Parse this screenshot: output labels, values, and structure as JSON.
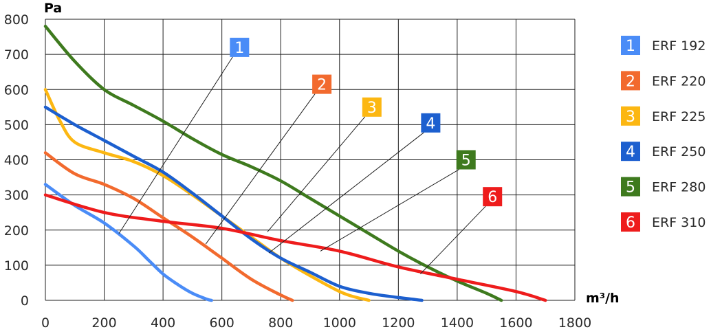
{
  "chart_data": {
    "type": "line",
    "title": "",
    "xlabel": "m³/h",
    "ylabel": "Pa",
    "xlim": [
      0,
      1800
    ],
    "ylim": [
      0,
      800
    ],
    "x_ticks": [
      "0",
      "200",
      "400",
      "600",
      "800",
      "1000",
      "1200",
      "1400",
      "1600",
      "1800"
    ],
    "y_ticks": [
      "0",
      "100",
      "200",
      "300",
      "400",
      "500",
      "600",
      "700",
      "800"
    ],
    "grid": true,
    "legend_position": "right",
    "series": [
      {
        "id": "1",
        "name": "ERF 192",
        "color": "#4a8cf7",
        "x": [
          0,
          100,
          200,
          300,
          350,
          400,
          450,
          500,
          550,
          565
        ],
        "y": [
          330,
          270,
          220,
          155,
          115,
          75,
          45,
          20,
          3,
          0
        ],
        "badge_anchor": [
          660,
          720
        ],
        "leader_end": [
          250,
          190
        ]
      },
      {
        "id": "2",
        "name": "ERF 220",
        "color": "#f26a2e",
        "x": [
          0,
          100,
          200,
          300,
          400,
          500,
          600,
          700,
          800,
          840
        ],
        "y": [
          420,
          360,
          330,
          290,
          235,
          180,
          120,
          60,
          15,
          0
        ],
        "badge_anchor": [
          940,
          615
        ],
        "leader_end": [
          545,
          160
        ]
      },
      {
        "id": "3",
        "name": "ERF 225",
        "color": "#fcb712",
        "x": [
          0,
          50,
          100,
          200,
          300,
          400,
          500,
          600,
          700,
          800,
          900,
          1000,
          1050,
          1100
        ],
        "y": [
          600,
          510,
          450,
          420,
          395,
          355,
          300,
          240,
          180,
          120,
          70,
          25,
          10,
          0
        ],
        "badge_anchor": [
          1110,
          550
        ],
        "leader_end": [
          755,
          195
        ]
      },
      {
        "id": "4",
        "name": "ERF 250",
        "color": "#1c5fcf",
        "x": [
          0,
          100,
          200,
          300,
          400,
          500,
          600,
          700,
          800,
          900,
          1000,
          1100,
          1200,
          1280
        ],
        "y": [
          550,
          500,
          455,
          410,
          365,
          305,
          240,
          175,
          120,
          80,
          40,
          20,
          8,
          0
        ],
        "badge_anchor": [
          1310,
          505
        ],
        "leader_end": [
          760,
          135
        ]
      },
      {
        "id": "5",
        "name": "ERF 280",
        "color": "#3e7a1e",
        "x": [
          0,
          100,
          200,
          300,
          400,
          500,
          600,
          700,
          800,
          900,
          1000,
          1100,
          1200,
          1300,
          1400,
          1500,
          1550
        ],
        "y": [
          780,
          680,
          600,
          555,
          510,
          460,
          415,
          380,
          340,
          290,
          240,
          190,
          140,
          95,
          55,
          20,
          0
        ],
        "badge_anchor": [
          1430,
          400
        ],
        "leader_end": [
          935,
          140
        ]
      },
      {
        "id": "6",
        "name": "ERF 310",
        "color": "#ee1c1c",
        "x": [
          0,
          200,
          400,
          600,
          800,
          1000,
          1200,
          1400,
          1600,
          1700
        ],
        "y": [
          300,
          250,
          225,
          205,
          170,
          140,
          95,
          60,
          25,
          0
        ],
        "badge_anchor": [
          1520,
          295
        ],
        "leader_end": [
          1275,
          75
        ]
      }
    ]
  }
}
